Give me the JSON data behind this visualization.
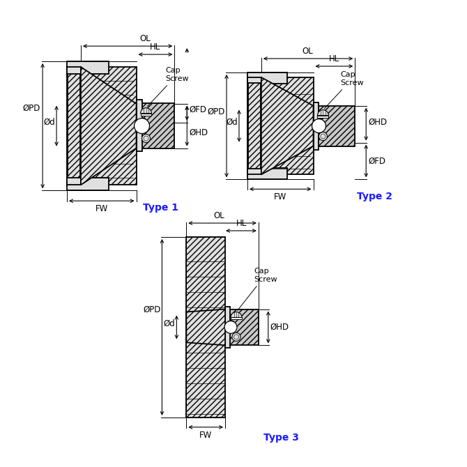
{
  "bg_color": "#ffffff",
  "line_color": "#000000",
  "type_color": "#1a1aff",
  "fill_light": "#e0e0e0",
  "fill_medium": "#c8c8c8",
  "label_fontsize": 8.5,
  "type_fontsize": 10,
  "types": [
    "Type 1",
    "Type 2",
    "Type 3"
  ]
}
